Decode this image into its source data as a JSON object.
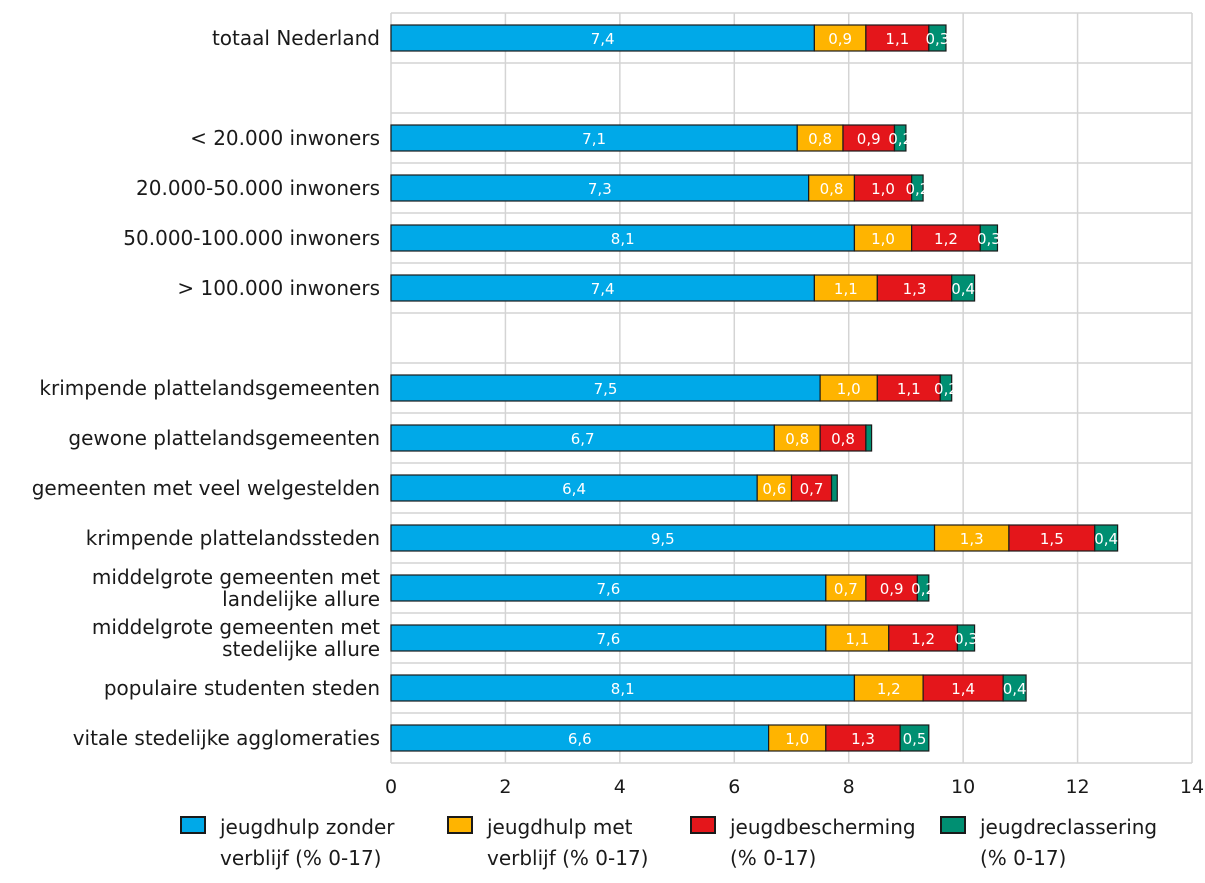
{
  "chart_data": {
    "type": "bar",
    "orientation": "horizontal",
    "stacked": true,
    "categories": [
      "totaal Nederland",
      "",
      "< 20.000 inwoners",
      "20.000-50.000 inwoners",
      "50.000-100.000 inwoners",
      "> 100.000 inwoners",
      "",
      "krimpende plattelandsgemeenten",
      "gewone plattelandsgemeenten",
      "gemeenten met veel welgestelden",
      "krimpende plattelandssteden",
      "middelgrote gemeenten met\nlandelijke allure",
      "middelgrote gemeenten met\nstedelijke allure",
      "populaire studenten steden",
      "vitale stedelijke agglomeraties"
    ],
    "series": [
      {
        "name": "jeugdhulp zonder\nverblijf (% 0-17)",
        "color": "#00a9e8",
        "values": [
          7.4,
          null,
          7.1,
          7.3,
          8.1,
          7.4,
          null,
          7.5,
          6.7,
          6.4,
          9.5,
          7.6,
          7.6,
          8.1,
          6.6
        ],
        "labels": [
          "7,4",
          "",
          "7,1",
          "7,3",
          "8,1",
          "7,4",
          "",
          "7,5",
          "6,7",
          "6,4",
          "9,5",
          "7,6",
          "7,6",
          "8,1",
          "6,6"
        ]
      },
      {
        "name": "jeugdhulp met\nverblijf (% 0-17)",
        "color": "#ffb400",
        "values": [
          0.9,
          null,
          0.8,
          0.8,
          1.0,
          1.1,
          null,
          1.0,
          0.8,
          0.6,
          1.3,
          0.7,
          1.1,
          1.2,
          1.0
        ],
        "labels": [
          "0,9",
          "",
          "0,8",
          "0,8",
          "1,0",
          "1,1",
          "",
          "1,0",
          "0,8",
          "0,6",
          "1,3",
          "0,7",
          "1,1",
          "1,2",
          "1,0"
        ]
      },
      {
        "name": "jeugdbescherming\n(% 0-17)",
        "color": "#e4161b",
        "values": [
          1.1,
          null,
          0.9,
          1.0,
          1.2,
          1.3,
          null,
          1.1,
          0.8,
          0.7,
          1.5,
          0.9,
          1.2,
          1.4,
          1.3
        ],
        "labels": [
          "1,1",
          "",
          "0,9",
          "1,0",
          "1,2",
          "1,3",
          "",
          "1,1",
          "0,8",
          "0,7",
          "1,5",
          "0,9",
          "1,2",
          "1,4",
          "1,3"
        ]
      },
      {
        "name": "jeugdreclassering\n(% 0-17)",
        "color": "#008f72",
        "values": [
          0.3,
          null,
          0.2,
          0.2,
          0.3,
          0.4,
          null,
          0.2,
          0.1,
          0.1,
          0.4,
          0.2,
          0.3,
          0.4,
          0.5
        ],
        "labels": [
          "0,3",
          "",
          "0,2",
          "0,2",
          "0,3",
          "0,4",
          "",
          "0,2",
          "",
          "",
          "0,4",
          "0,2",
          "0,3",
          "0,4",
          "0,5"
        ]
      }
    ],
    "xlim": [
      0,
      14
    ],
    "xticks": [
      0,
      2,
      4,
      6,
      8,
      10,
      12,
      14
    ],
    "xtick_labels": [
      "0",
      "2",
      "4",
      "6",
      "8",
      "10",
      "12",
      "14"
    ],
    "grid": true,
    "legend_position": "bottom"
  }
}
